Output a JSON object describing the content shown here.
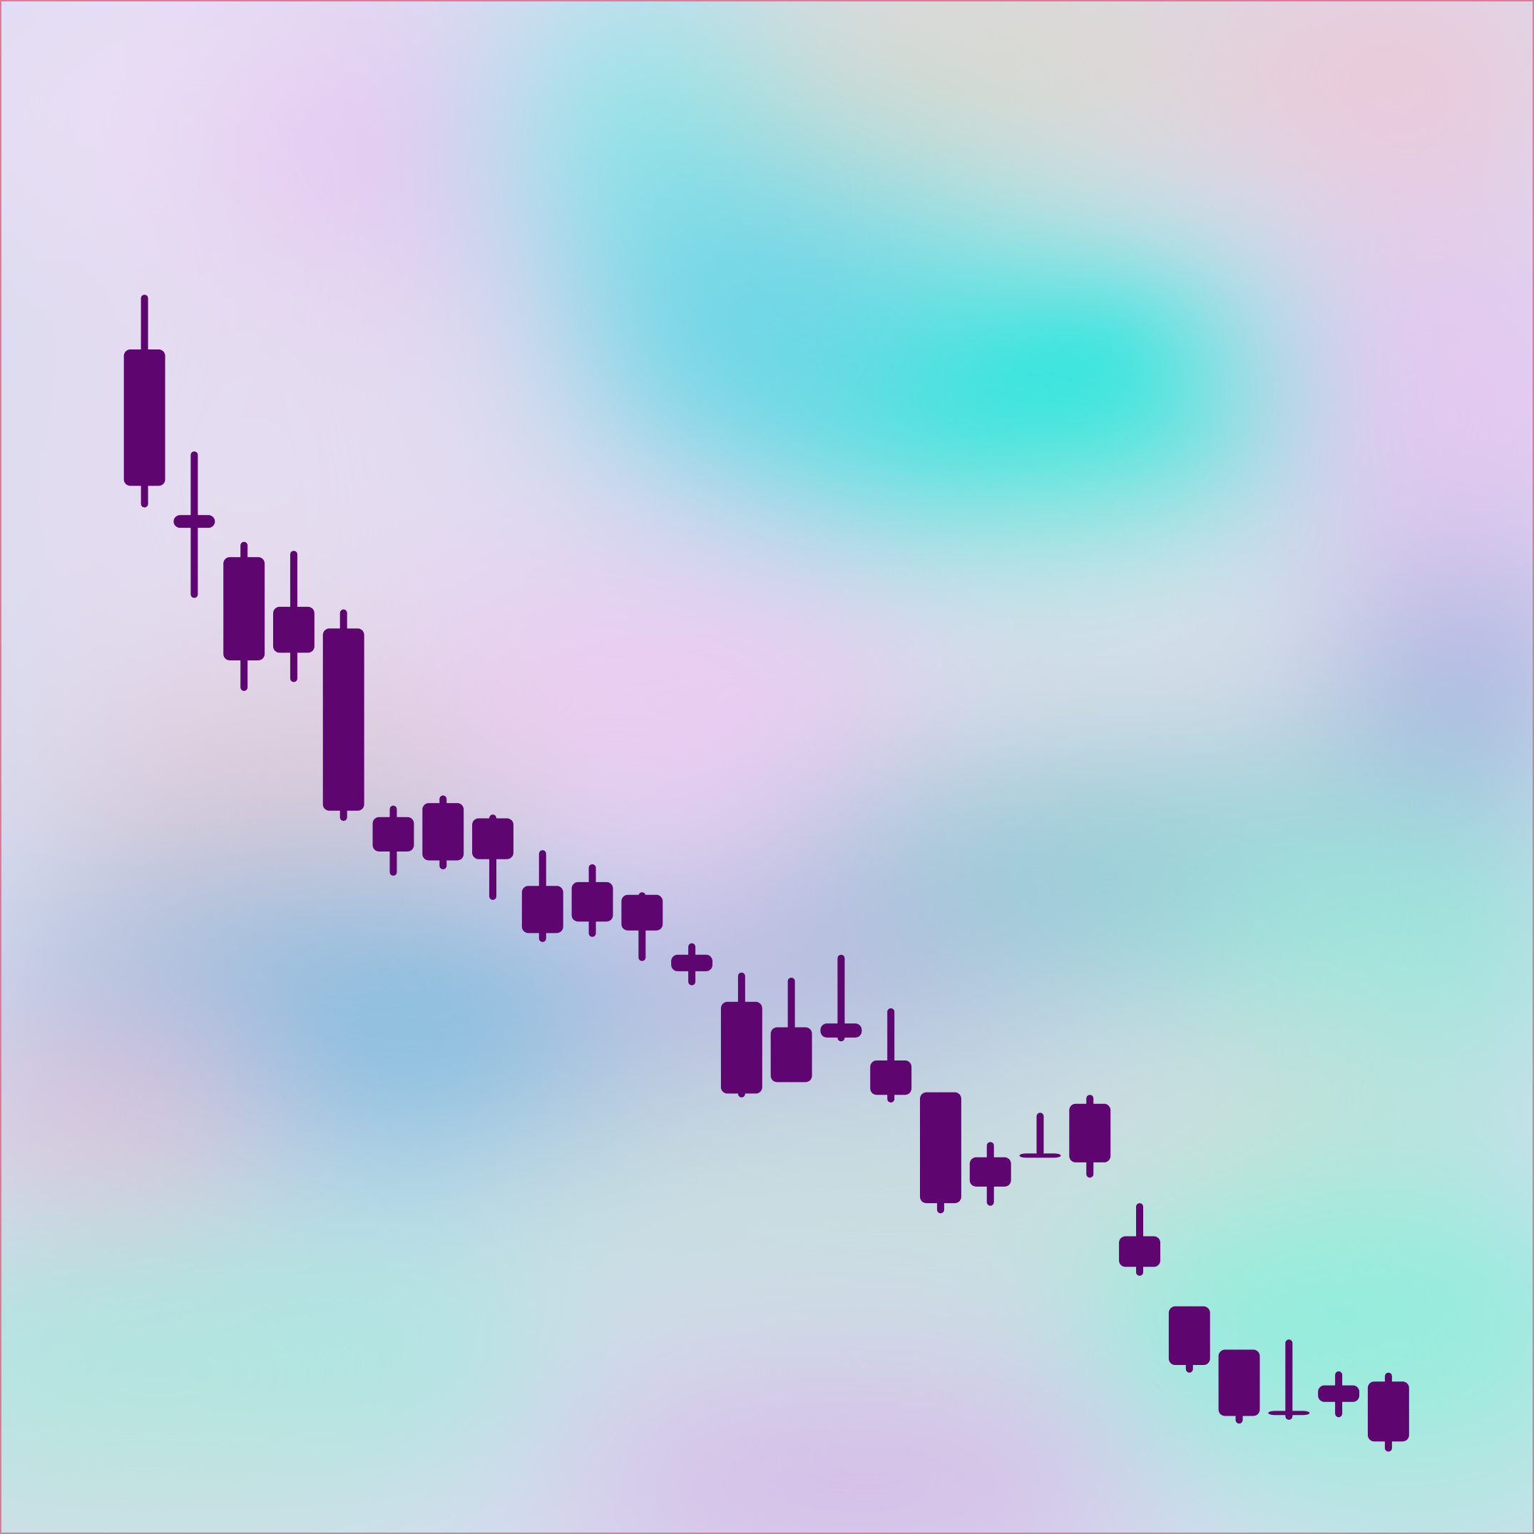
{
  "chart_data": {
    "type": "candlestick",
    "candle_color": "#5f056f",
    "background_colors": [
      "#e6e0f2",
      "#22e8dc",
      "#ecc6f2",
      "#86bee0",
      "#8eeed8",
      "#c8b6e6"
    ],
    "axes_visible": false,
    "grid": false,
    "ylim": [
      0,
      100
    ],
    "candles": [
      {
        "open": 83.3,
        "high": 87.6,
        "low": 70.9,
        "close": 72.6
      },
      {
        "open": 70.3,
        "high": 75.3,
        "low": 63.8,
        "close": 69.3
      },
      {
        "open": 67.0,
        "high": 68.2,
        "low": 56.5,
        "close": 58.9
      },
      {
        "open": 63.1,
        "high": 67.5,
        "low": 57.2,
        "close": 59.5
      },
      {
        "open": 61.4,
        "high": 62.9,
        "low": 46.3,
        "close": 47.1
      },
      {
        "open": 46.6,
        "high": 47.5,
        "low": 42.0,
        "close": 43.9
      },
      {
        "open": 47.7,
        "high": 48.3,
        "low": 42.5,
        "close": 43.2
      },
      {
        "open": 46.5,
        "high": 46.8,
        "low": 40.1,
        "close": 43.3
      },
      {
        "open": 41.2,
        "high": 44.0,
        "low": 36.8,
        "close": 37.5
      },
      {
        "open": 41.5,
        "high": 42.9,
        "low": 37.2,
        "close": 38.4
      },
      {
        "open": 40.5,
        "high": 40.7,
        "low": 35.3,
        "close": 37.7
      },
      {
        "open": 35.8,
        "high": 36.7,
        "low": 33.4,
        "close": 34.5
      },
      {
        "open": 32.1,
        "high": 34.4,
        "low": 24.6,
        "close": 24.9
      },
      {
        "open": 30.1,
        "high": 34.0,
        "low": 25.8,
        "close": 25.8
      },
      {
        "open": 30.4,
        "high": 35.8,
        "low": 29.0,
        "close": 29.3
      },
      {
        "open": 27.5,
        "high": 31.6,
        "low": 24.2,
        "close": 24.8
      },
      {
        "open": 25.0,
        "high": 25.0,
        "low": 15.5,
        "close": 16.3
      },
      {
        "open": 19.9,
        "high": 21.1,
        "low": 16.1,
        "close": 17.6
      },
      {
        "open": 20.2,
        "high": 23.4,
        "low": 20.0,
        "close": 20.2
      },
      {
        "open": 24.1,
        "high": 24.8,
        "low": 18.3,
        "close": 19.5
      },
      {
        "open": 13.7,
        "high": 16.3,
        "low": 10.6,
        "close": 11.3
      },
      {
        "open": 8.2,
        "high": 8.2,
        "low": 3.0,
        "close": 3.6
      },
      {
        "open": 4.8,
        "high": 4.8,
        "low": -1.0,
        "close": -0.4
      },
      {
        "open": 0.0,
        "high": 5.6,
        "low": -0.7,
        "close": -0.3
      },
      {
        "open": 2.0,
        "high": 3.1,
        "low": -0.5,
        "close": 0.7
      },
      {
        "open": 2.3,
        "high": 3.0,
        "low": -3.2,
        "close": -2.4
      }
    ]
  }
}
